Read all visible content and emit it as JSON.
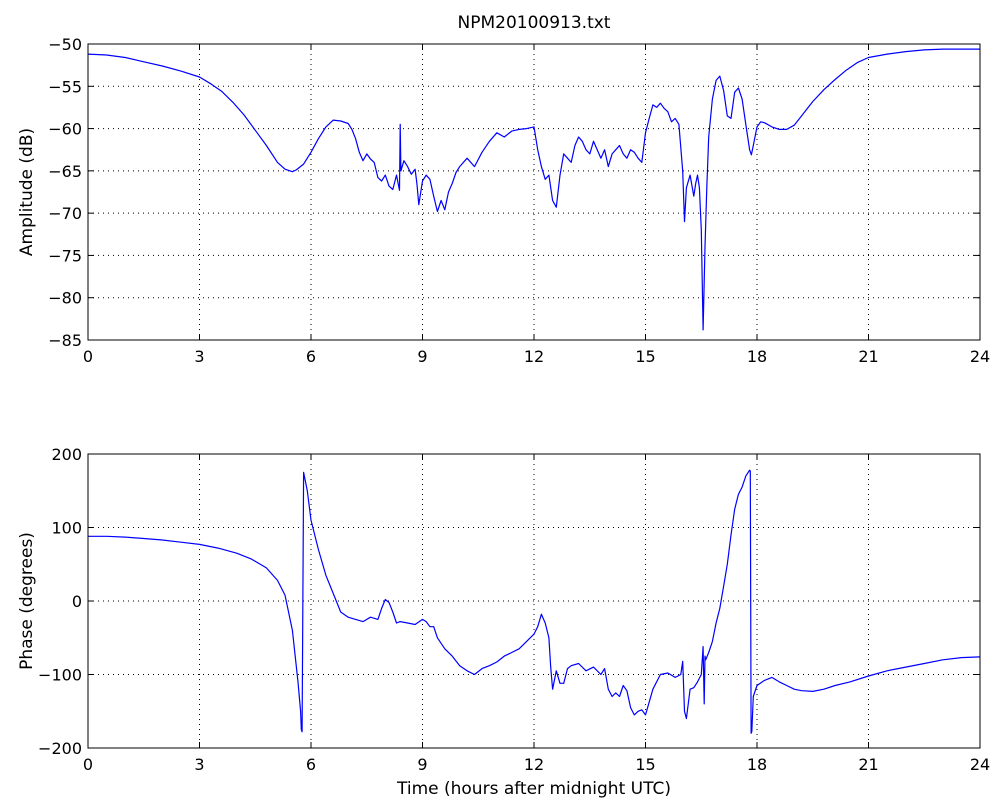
{
  "figure": {
    "title": "NPM20100913.txt"
  },
  "colors": {
    "series": "#0000ff",
    "axes": "#000000",
    "background": "#ffffff"
  },
  "chart_data": [
    {
      "type": "line",
      "title": "NPM20100913.txt",
      "xlabel": "",
      "ylabel": "Amplitude (dB)",
      "xlim": [
        0,
        24
      ],
      "ylim": [
        -85,
        -50
      ],
      "xticks": [
        "0",
        "3",
        "6",
        "9",
        "12",
        "15",
        "18",
        "21",
        "24"
      ],
      "yticks": [
        "-85",
        "-80",
        "-75",
        "-70",
        "-65",
        "-60",
        "-55",
        "-50"
      ],
      "grid": true,
      "series": [
        {
          "x": [
            0,
            0.5,
            1,
            1.5,
            2,
            2.5,
            3,
            3.3,
            3.6,
            3.9,
            4.2,
            4.5,
            4.8,
            5.1,
            5.3,
            5.5,
            5.6,
            5.8,
            6.0,
            6.2,
            6.4,
            6.6,
            6.8,
            7.0,
            7.1,
            7.2,
            7.3,
            7.4,
            7.5,
            7.6,
            7.7,
            7.8,
            7.9,
            8.0,
            8.1,
            8.2,
            8.3,
            8.38,
            8.4,
            8.42,
            8.5,
            8.6,
            8.7,
            8.8,
            8.85,
            8.9,
            9.0,
            9.1,
            9.2,
            9.3,
            9.4,
            9.5,
            9.6,
            9.7,
            9.8,
            9.9,
            10.0,
            10.2,
            10.4,
            10.6,
            10.8,
            11.0,
            11.2,
            11.4,
            11.6,
            11.8,
            12.0,
            12.1,
            12.2,
            12.3,
            12.4,
            12.5,
            12.6,
            12.7,
            12.8,
            12.9,
            13.0,
            13.1,
            13.2,
            13.3,
            13.4,
            13.5,
            13.6,
            13.7,
            13.8,
            13.9,
            14.0,
            14.1,
            14.2,
            14.3,
            14.4,
            14.5,
            14.6,
            14.7,
            14.8,
            14.9,
            15.0,
            15.1,
            15.2,
            15.3,
            15.4,
            15.5,
            15.6,
            15.7,
            15.8,
            15.9,
            16.0,
            16.05,
            16.1,
            16.2,
            16.3,
            16.35,
            16.4,
            16.45,
            16.5,
            16.55,
            16.6,
            16.65,
            16.7,
            16.8,
            16.9,
            17.0,
            17.1,
            17.2,
            17.3,
            17.4,
            17.5,
            17.6,
            17.7,
            17.8,
            17.85,
            17.9,
            18.0,
            18.1,
            18.2,
            18.4,
            18.6,
            18.8,
            19.0,
            19.2,
            19.5,
            19.8,
            20.1,
            20.4,
            20.7,
            21.0,
            21.5,
            22.0,
            22.5,
            23.0,
            23.5,
            24.0
          ],
          "y": [
            -51.2,
            -51.3,
            -51.6,
            -52.1,
            -52.6,
            -53.2,
            -53.9,
            -54.7,
            -55.6,
            -56.9,
            -58.4,
            -60.2,
            -62.0,
            -64.0,
            -64.8,
            -65.1,
            -64.9,
            -64.2,
            -62.8,
            -61.2,
            -59.8,
            -59.0,
            -59.1,
            -59.4,
            -60.1,
            -61.2,
            -62.8,
            -63.8,
            -63.0,
            -63.6,
            -64.0,
            -65.8,
            -66.2,
            -65.5,
            -66.8,
            -67.2,
            -65.5,
            -67.3,
            -59.5,
            -65.0,
            -63.8,
            -64.5,
            -65.4,
            -64.8,
            -66.5,
            -69.0,
            -66.2,
            -65.5,
            -66.0,
            -68.0,
            -69.8,
            -68.5,
            -69.6,
            -67.5,
            -66.5,
            -65.2,
            -64.5,
            -63.5,
            -64.5,
            -62.8,
            -61.5,
            -60.5,
            -61.0,
            -60.3,
            -60.1,
            -60.0,
            -59.8,
            -62.5,
            -64.5,
            -66.0,
            -65.5,
            -68.5,
            -69.3,
            -65.5,
            -63.0,
            -63.5,
            -64.0,
            -62.0,
            -61.0,
            -61.5,
            -62.5,
            -63.0,
            -61.5,
            -62.5,
            -63.5,
            -62.5,
            -64.5,
            -63.0,
            -62.5,
            -62.0,
            -63.0,
            -63.5,
            -62.5,
            -62.8,
            -63.5,
            -64.0,
            -60.5,
            -58.8,
            -57.2,
            -57.5,
            -57.0,
            -57.6,
            -58.0,
            -59.2,
            -58.8,
            -59.5,
            -65.0,
            -71.0,
            -67.0,
            -65.5,
            -68.0,
            -66.5,
            -65.5,
            -67.0,
            -72.0,
            -83.8,
            -74.0,
            -67.0,
            -61.0,
            -56.5,
            -54.3,
            -53.8,
            -55.5,
            -58.5,
            -58.8,
            -55.7,
            -55.2,
            -56.5,
            -59.5,
            -62.5,
            -63.1,
            -62.0,
            -59.8,
            -59.2,
            -59.3,
            -59.8,
            -60.1,
            -60.1,
            -59.6,
            -58.5,
            -56.8,
            -55.4,
            -54.2,
            -53.1,
            -52.2,
            -51.6,
            -51.2,
            -50.9,
            -50.7,
            -50.6,
            -50.6,
            -50.6
          ]
        }
      ]
    },
    {
      "type": "line",
      "xlabel": "Time (hours after midnight UTC)",
      "ylabel": "Phase (degrees)",
      "xlim": [
        0,
        24
      ],
      "ylim": [
        -200,
        200
      ],
      "xticks": [
        "0",
        "3",
        "6",
        "9",
        "12",
        "15",
        "18",
        "21",
        "24"
      ],
      "yticks": [
        "-200",
        "-100",
        "0",
        "100",
        "200"
      ],
      "grid": true,
      "series": [
        {
          "x": [
            0,
            0.5,
            1,
            1.5,
            2,
            2.5,
            3,
            3.5,
            4,
            4.4,
            4.8,
            5.1,
            5.3,
            5.5,
            5.65,
            5.72,
            5.74,
            5.76,
            5.8,
            5.9,
            6.0,
            6.2,
            6.4,
            6.6,
            6.8,
            7.0,
            7.2,
            7.4,
            7.6,
            7.8,
            7.9,
            8.0,
            8.1,
            8.2,
            8.3,
            8.4,
            8.6,
            8.8,
            9.0,
            9.1,
            9.2,
            9.3,
            9.4,
            9.6,
            9.8,
            10.0,
            10.2,
            10.4,
            10.6,
            10.8,
            11.0,
            11.2,
            11.4,
            11.6,
            11.8,
            12.0,
            12.1,
            12.2,
            12.3,
            12.4,
            12.45,
            12.5,
            12.6,
            12.7,
            12.8,
            12.9,
            13.0,
            13.2,
            13.4,
            13.6,
            13.8,
            13.9,
            14.0,
            14.1,
            14.2,
            14.3,
            14.4,
            14.5,
            14.6,
            14.7,
            14.8,
            14.9,
            15.0,
            15.2,
            15.4,
            15.6,
            15.8,
            15.95,
            16.0,
            16.05,
            16.1,
            16.2,
            16.3,
            16.4,
            16.5,
            16.55,
            16.58,
            16.6,
            16.62,
            16.7,
            16.8,
            16.9,
            17.0,
            17.1,
            17.2,
            17.3,
            17.4,
            17.5,
            17.6,
            17.7,
            17.8,
            17.82,
            17.84,
            17.86,
            17.9,
            18.0,
            18.2,
            18.4,
            18.6,
            18.8,
            19.0,
            19.2,
            19.5,
            19.8,
            20.1,
            20.5,
            21.0,
            21.5,
            22.0,
            22.5,
            23.0,
            23.5,
            24.0
          ],
          "y": [
            88,
            88,
            87,
            85,
            83,
            80,
            77,
            72,
            65,
            57,
            45,
            28,
            8,
            -40,
            -110,
            -150,
            -175,
            -178,
            175,
            150,
            110,
            70,
            35,
            10,
            -15,
            -22,
            -25,
            -28,
            -22,
            -25,
            -10,
            2,
            -2,
            -15,
            -30,
            -28,
            -30,
            -32,
            -25,
            -28,
            -35,
            -35,
            -50,
            -65,
            -75,
            -88,
            -95,
            -100,
            -92,
            -88,
            -83,
            -75,
            -70,
            -65,
            -55,
            -45,
            -35,
            -18,
            -30,
            -50,
            -90,
            -120,
            -95,
            -112,
            -112,
            -92,
            -88,
            -85,
            -95,
            -90,
            -100,
            -92,
            -120,
            -130,
            -125,
            -130,
            -115,
            -122,
            -145,
            -155,
            -150,
            -148,
            -155,
            -120,
            -100,
            -98,
            -104,
            -100,
            -82,
            -150,
            -160,
            -120,
            -118,
            -110,
            -100,
            -62,
            -140,
            -75,
            -80,
            -70,
            -55,
            -30,
            -10,
            20,
            50,
            90,
            125,
            145,
            155,
            170,
            178,
            177,
            -180,
            -178,
            -130,
            -115,
            -108,
            -104,
            -110,
            -115,
            -120,
            -122,
            -123,
            -120,
            -115,
            -110,
            -102,
            -95,
            -90,
            -85,
            -80,
            -77,
            -76
          ]
        }
      ]
    }
  ]
}
